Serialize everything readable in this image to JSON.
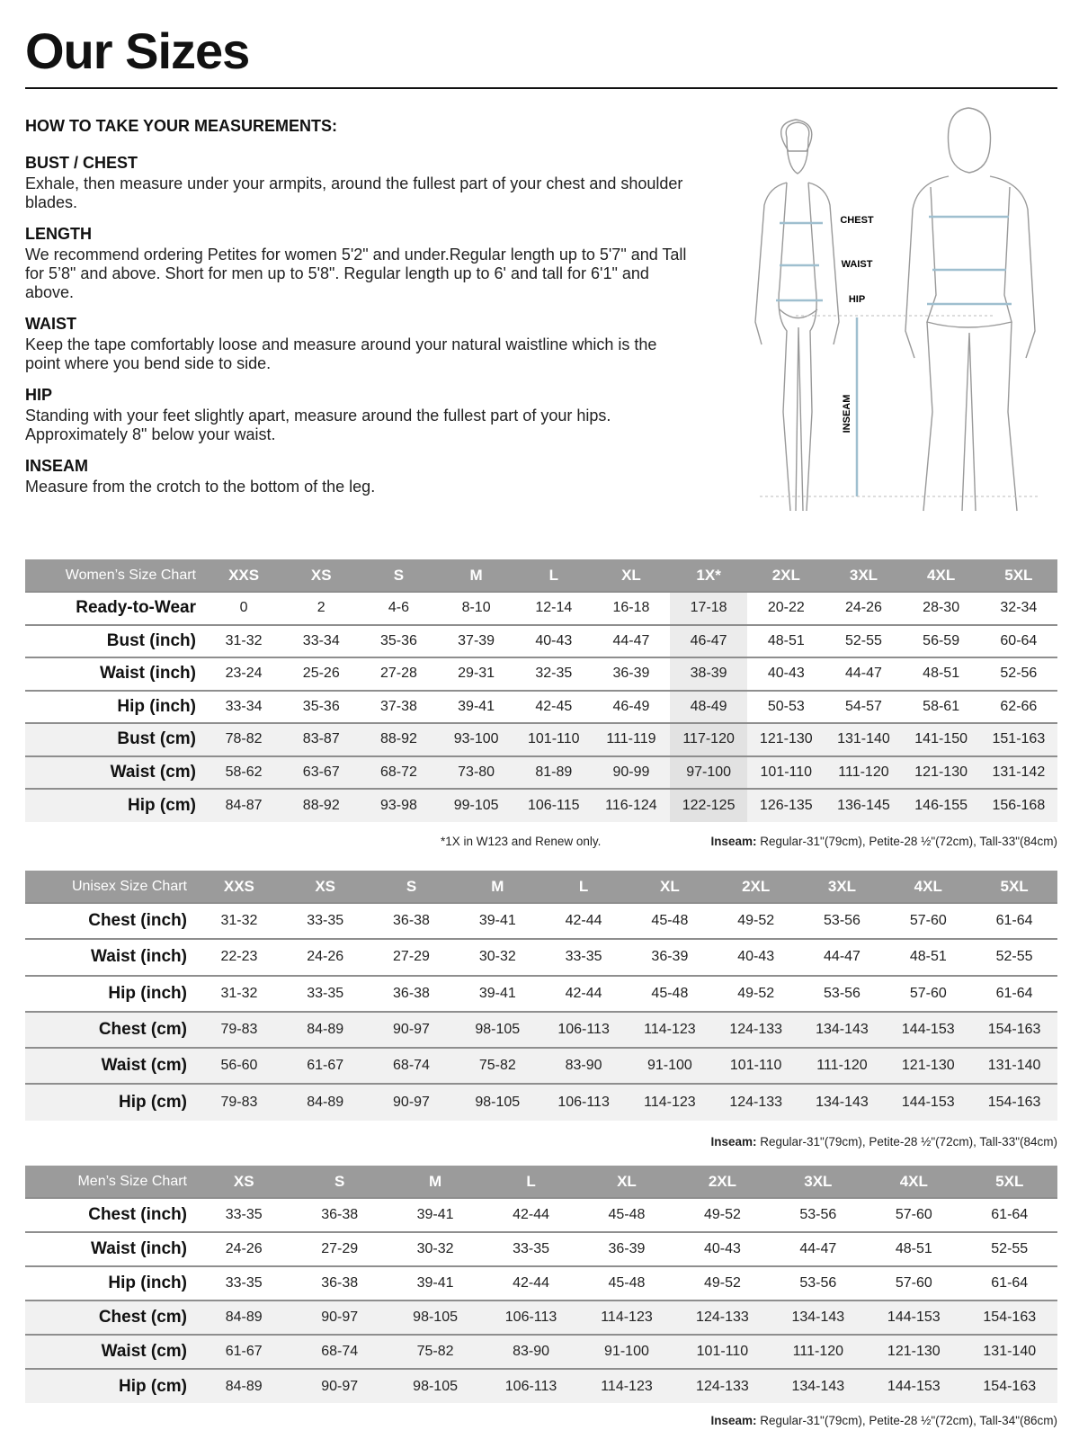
{
  "title": "Our Sizes",
  "measurements": {
    "heading": "HOW TO TAKE YOUR MEASUREMENTS:",
    "sections": [
      {
        "title": "BUST / CHEST",
        "text": "Exhale, then measure under your armpits, around the fullest part of your chest and shoulder blades."
      },
      {
        "title": "LENGTH",
        "text": "We recommend ordering Petites for women 5'2\" and under.Regular length up to 5'7\" and Tall for 5’8\" and above. Short for men up to 5'8\". Regular length up to 6' and tall for 6'1\" and above."
      },
      {
        "title": "WAIST",
        "text": "Keep the tape comfortably loose and measure around your natural waistline which is the point where you bend side to side."
      },
      {
        "title": "HIP",
        "text": "Standing with your feet slightly apart, measure around the fullest part of your hips. Approximately 8\" below your waist."
      },
      {
        "title": "INSEAM",
        "text": "Measure from the crotch to the bottom of the leg."
      }
    ]
  },
  "figure": {
    "chest": "CHEST",
    "waist": "WAIST",
    "hip": "HIP",
    "inseam": "INSEAM",
    "line_color": "#9fbfcf"
  },
  "womens": {
    "title": "Women’s Size Chart",
    "sizes": [
      "XXS",
      "XS",
      "S",
      "M",
      "L",
      "XL",
      "1X*",
      "2XL",
      "3XL",
      "4XL",
      "5XL"
    ],
    "rows": [
      {
        "label": "Ready-to-Wear",
        "values": [
          "0",
          "2",
          "4-6",
          "8-10",
          "12-14",
          "16-18",
          "17-18",
          "20-22",
          "24-26",
          "28-30",
          "32-34"
        ]
      },
      {
        "label": "Bust (inch)",
        "values": [
          "31-32",
          "33-34",
          "35-36",
          "37-39",
          "40-43",
          "44-47",
          "46-47",
          "48-51",
          "52-55",
          "56-59",
          "60-64"
        ]
      },
      {
        "label": "Waist (inch)",
        "values": [
          "23-24",
          "25-26",
          "27-28",
          "29-31",
          "32-35",
          "36-39",
          "38-39",
          "40-43",
          "44-47",
          "48-51",
          "52-56"
        ]
      },
      {
        "label": "Hip (inch)",
        "values": [
          "33-34",
          "35-36",
          "37-38",
          "39-41",
          "42-45",
          "46-49",
          "48-49",
          "50-53",
          "54-57",
          "58-61",
          "62-66"
        ]
      },
      {
        "label": "Bust (cm)",
        "values": [
          "78-82",
          "83-87",
          "88-92",
          "93-100",
          "101-110",
          "111-119",
          "117-120",
          "121-130",
          "131-140",
          "141-150",
          "151-163"
        ]
      },
      {
        "label": "Waist (cm)",
        "values": [
          "58-62",
          "63-67",
          "68-72",
          "73-80",
          "81-89",
          "90-99",
          "97-100",
          "101-110",
          "111-120",
          "121-130",
          "131-142"
        ]
      },
      {
        "label": "Hip (cm)",
        "values": [
          "84-87",
          "88-92",
          "93-98",
          "99-105",
          "106-115",
          "116-124",
          "122-125",
          "126-135",
          "136-145",
          "146-155",
          "156-168"
        ]
      }
    ],
    "footnote": "*1X in W123 and Renew only.",
    "inseam_label": "Inseam:",
    "inseam": " Regular-31\"(79cm), Petite-28 ½\"(72cm), Tall-33\"(84cm)"
  },
  "unisex": {
    "title": "Unisex Size Chart",
    "sizes": [
      "XXS",
      "XS",
      "S",
      "M",
      "L",
      "XL",
      "2XL",
      "3XL",
      "4XL",
      "5XL"
    ],
    "rows": [
      {
        "label": "Chest (inch)",
        "values": [
          "31-32",
          "33-35",
          "36-38",
          "39-41",
          "42-44",
          "45-48",
          "49-52",
          "53-56",
          "57-60",
          "61-64"
        ]
      },
      {
        "label": "Waist (inch)",
        "values": [
          "22-23",
          "24-26",
          "27-29",
          "30-32",
          "33-35",
          "36-39",
          "40-43",
          "44-47",
          "48-51",
          "52-55"
        ]
      },
      {
        "label": "Hip (inch)",
        "values": [
          "31-32",
          "33-35",
          "36-38",
          "39-41",
          "42-44",
          "45-48",
          "49-52",
          "53-56",
          "57-60",
          "61-64"
        ]
      },
      {
        "label": "Chest (cm)",
        "values": [
          "79-83",
          "84-89",
          "90-97",
          "98-105",
          "106-113",
          "114-123",
          "124-133",
          "134-143",
          "144-153",
          "154-163"
        ]
      },
      {
        "label": "Waist (cm)",
        "values": [
          "56-60",
          "61-67",
          "68-74",
          "75-82",
          "83-90",
          "91-100",
          "101-110",
          "111-120",
          "121-130",
          "131-140"
        ]
      },
      {
        "label": "Hip (cm)",
        "values": [
          "79-83",
          "84-89",
          "90-97",
          "98-105",
          "106-113",
          "114-123",
          "124-133",
          "134-143",
          "144-153",
          "154-163"
        ]
      }
    ],
    "inseam_label": "Inseam:",
    "inseam": " Regular-31\"(79cm), Petite-28 ½\"(72cm), Tall-33\"(84cm)"
  },
  "mens": {
    "title": "Men’s Size Chart",
    "sizes": [
      "XS",
      "S",
      "M",
      "L",
      "XL",
      "2XL",
      "3XL",
      "4XL",
      "5XL"
    ],
    "rows": [
      {
        "label": "Chest (inch)",
        "values": [
          "33-35",
          "36-38",
          "39-41",
          "42-44",
          "45-48",
          "49-52",
          "53-56",
          "57-60",
          "61-64"
        ]
      },
      {
        "label": "Waist (inch)",
        "values": [
          "24-26",
          "27-29",
          "30-32",
          "33-35",
          "36-39",
          "40-43",
          "44-47",
          "48-51",
          "52-55"
        ]
      },
      {
        "label": "Hip (inch)",
        "values": [
          "33-35",
          "36-38",
          "39-41",
          "42-44",
          "45-48",
          "49-52",
          "53-56",
          "57-60",
          "61-64"
        ]
      },
      {
        "label": "Chest (cm)",
        "values": [
          "84-89",
          "90-97",
          "98-105",
          "106-113",
          "114-123",
          "124-133",
          "134-143",
          "144-153",
          "154-163"
        ]
      },
      {
        "label": "Waist (cm)",
        "values": [
          "61-67",
          "68-74",
          "75-82",
          "83-90",
          "91-100",
          "101-110",
          "111-120",
          "121-130",
          "131-140"
        ]
      },
      {
        "label": "Hip (cm)",
        "values": [
          "84-89",
          "90-97",
          "98-105",
          "106-113",
          "114-123",
          "124-133",
          "134-143",
          "144-153",
          "154-163"
        ]
      }
    ],
    "inseam_label": "Inseam:",
    "inseam": " Regular-31\"(79cm), Petite-28 ½\"(72cm), Tall-34\"(86cm)"
  }
}
